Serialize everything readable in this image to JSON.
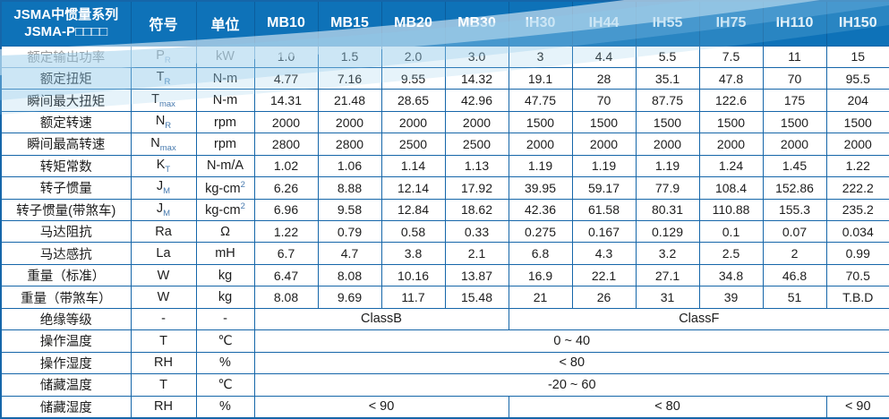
{
  "header": {
    "title_line1": "JSMA中惯量系列",
    "title_line2": "JSMA-P□□□□",
    "symbol_col": "符号",
    "unit_col": "单位",
    "models": [
      "MB10",
      "MB15",
      "MB20",
      "MB30",
      "IH30",
      "IH44",
      "IH55",
      "IH75",
      "IH110",
      "IH150"
    ]
  },
  "rows": [
    {
      "label": "额定输出功率",
      "symbol": "P",
      "sub": "R",
      "unit": "kW",
      "values": [
        "1.0",
        "1.5",
        "2.0",
        "3.0",
        "3",
        "4.4",
        "5.5",
        "7.5",
        "11",
        "15"
      ]
    },
    {
      "label": "额定扭矩",
      "symbol": "T",
      "sub": "R",
      "unit": "N-m",
      "values": [
        "4.77",
        "7.16",
        "9.55",
        "14.32",
        "19.1",
        "28",
        "35.1",
        "47.8",
        "70",
        "95.5"
      ]
    },
    {
      "label": "瞬间最大扭矩",
      "symbol": "T",
      "sub": "max",
      "unit": "N-m",
      "values": [
        "14.31",
        "21.48",
        "28.65",
        "42.96",
        "47.75",
        "70",
        "87.75",
        "122.6",
        "175",
        "204"
      ]
    },
    {
      "label": "额定转速",
      "symbol": "N",
      "sub": "R",
      "unit": "rpm",
      "values": [
        "2000",
        "2000",
        "2000",
        "2000",
        "1500",
        "1500",
        "1500",
        "1500",
        "1500",
        "1500"
      ]
    },
    {
      "label": "瞬间最高转速",
      "symbol": "N",
      "sub": "max",
      "unit": "rpm",
      "values": [
        "2800",
        "2800",
        "2500",
        "2500",
        "2000",
        "2000",
        "2000",
        "2000",
        "2000",
        "2000"
      ]
    },
    {
      "label": "转矩常数",
      "symbol": "K",
      "sub": "T",
      "unit": "N-m/A",
      "values": [
        "1.02",
        "1.06",
        "1.14",
        "1.13",
        "1.19",
        "1.19",
        "1.19",
        "1.24",
        "1.45",
        "1.22"
      ]
    },
    {
      "label": "转子惯量",
      "symbol": "J",
      "sub": "M",
      "unit": "kg-cm",
      "unit_sup": "2",
      "values": [
        "6.26",
        "8.88",
        "12.14",
        "17.92",
        "39.95",
        "59.17",
        "77.9",
        "108.4",
        "152.86",
        "222.2"
      ]
    },
    {
      "label": "转子惯量(带煞车)",
      "symbol": "J",
      "sub": "M",
      "unit": "kg-cm",
      "unit_sup": "2",
      "values": [
        "6.96",
        "9.58",
        "12.84",
        "18.62",
        "42.36",
        "61.58",
        "80.31",
        "110.88",
        "155.3",
        "235.2"
      ]
    },
    {
      "label": "马达阻抗",
      "symbol": "Ra",
      "unit": "Ω",
      "values": [
        "1.22",
        "0.79",
        "0.58",
        "0.33",
        "0.275",
        "0.167",
        "0.129",
        "0.1",
        "0.07",
        "0.034"
      ]
    },
    {
      "label": "马达感抗",
      "symbol": "La",
      "unit": "mH",
      "values": [
        "6.7",
        "4.7",
        "3.8",
        "2.1",
        "6.8",
        "4.3",
        "3.2",
        "2.5",
        "2",
        "0.99"
      ]
    },
    {
      "label": "重量（标准）",
      "symbol": "W",
      "unit": "kg",
      "values": [
        "6.47",
        "8.08",
        "10.16",
        "13.87",
        "16.9",
        "22.1",
        "27.1",
        "34.8",
        "46.8",
        "70.5"
      ]
    },
    {
      "label": "重量（带煞车）",
      "symbol": "W",
      "unit": "kg",
      "values": [
        "8.08",
        "9.69",
        "11.7",
        "15.48",
        "21",
        "26",
        "31",
        "39",
        "51",
        "T.B.D"
      ]
    },
    {
      "label": "绝缘等级",
      "symbol": "-",
      "unit": "-",
      "spans": [
        {
          "text": "ClassB",
          "cols": 4
        },
        {
          "text": "ClassF",
          "cols": 6
        }
      ]
    },
    {
      "label": "操作温度",
      "symbol": "T",
      "unit": "℃",
      "spans": [
        {
          "text": "0 ~ 40",
          "cols": 10
        }
      ]
    },
    {
      "label": "操作湿度",
      "symbol": "RH",
      "unit": "%",
      "spans": [
        {
          "text": "< 80",
          "cols": 10
        }
      ]
    },
    {
      "label": "储藏温度",
      "symbol": "T",
      "unit": "℃",
      "spans": [
        {
          "text": "-20 ~ 60",
          "cols": 10
        }
      ]
    },
    {
      "label": "储藏湿度",
      "symbol": "RH",
      "unit": "%",
      "spans": [
        {
          "text": "< 90",
          "cols": 4
        },
        {
          "text": "< 80",
          "cols": 5
        },
        {
          "text": "< 90",
          "cols": 1
        }
      ]
    }
  ],
  "colors": {
    "header_bg": "#0e72b8",
    "border": "#1566a9",
    "subscript": "#4679ae",
    "wave": "#8dc7e8",
    "text": "#1c1c1c"
  }
}
